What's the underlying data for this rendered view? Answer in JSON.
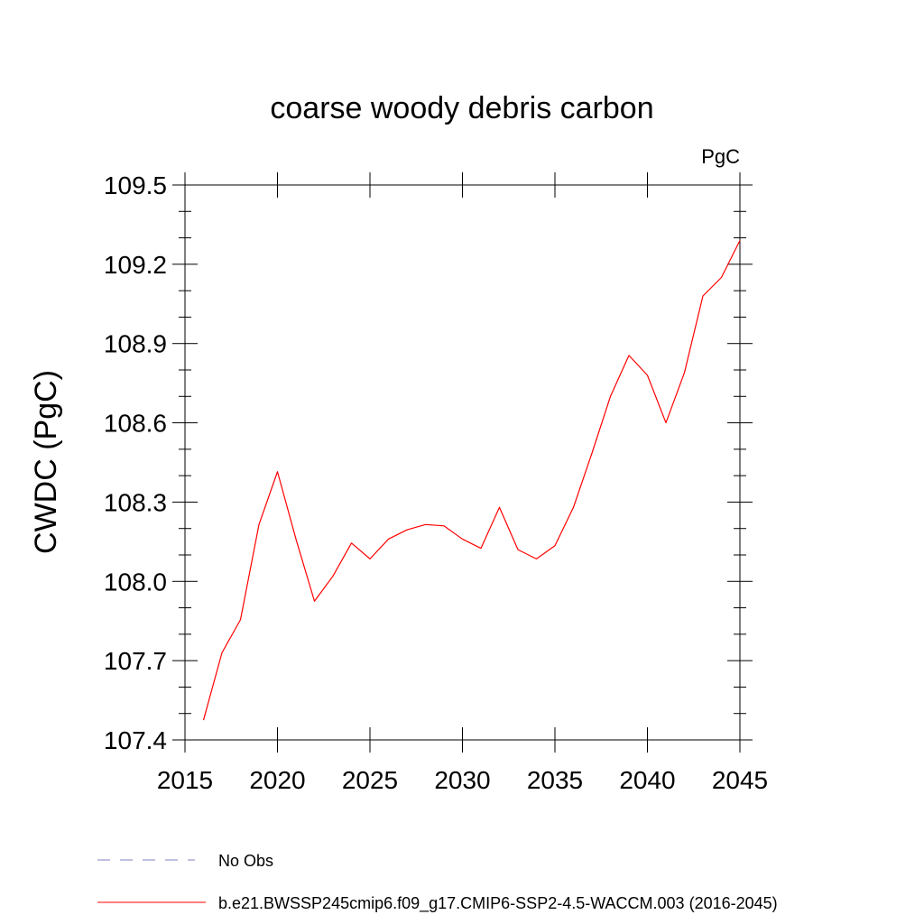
{
  "chart_data": {
    "type": "line",
    "title": "coarse woody debris carbon",
    "units": "PgC",
    "ylabel": "CWDC  (PgC)",
    "xlabel": "",
    "xlim": [
      2015,
      2045
    ],
    "ylim": [
      107.4,
      109.5
    ],
    "xticks": [
      2015,
      2020,
      2025,
      2030,
      2035,
      2040,
      2045
    ],
    "xtick_labels": [
      "2015",
      "2020",
      "2025",
      "2030",
      "2035",
      "2040",
      "2045"
    ],
    "yticks": [
      107.4,
      107.7,
      108.0,
      108.3,
      108.6,
      108.9,
      109.2,
      109.5
    ],
    "ytick_labels": [
      "107.4",
      "107.7",
      "108.0",
      "108.3",
      "108.6",
      "108.9",
      "109.2",
      "109.5"
    ],
    "grid": false,
    "legend_position": "bottom",
    "legend": [
      {
        "label": "No Obs",
        "color": "#8080c0",
        "style": "dashed"
      },
      {
        "label": "b.e21.BWSSP245cmip6.f09_g17.CMIP6-SSP2-4.5-WACCM.003 (2016-2045)",
        "color": "#ff0000",
        "style": "solid"
      }
    ],
    "series": [
      {
        "name": "b.e21.BWSSP245cmip6.f09_g17.CMIP6-SSP2-4.5-WACCM.003 (2016-2045)",
        "color": "#ff0000",
        "x": [
          2016,
          2017,
          2018,
          2019,
          2020,
          2021,
          2022,
          2023,
          2024,
          2025,
          2026,
          2027,
          2028,
          2029,
          2030,
          2031,
          2032,
          2033,
          2034,
          2035,
          2036,
          2037,
          2038,
          2039,
          2040,
          2041,
          2042,
          2043,
          2044,
          2045
        ],
        "y": [
          107.475,
          107.73,
          107.855,
          108.215,
          108.415,
          108.16,
          107.925,
          108.02,
          108.145,
          108.085,
          108.16,
          108.195,
          108.215,
          108.21,
          108.16,
          108.125,
          108.28,
          108.12,
          108.085,
          108.135,
          108.28,
          108.485,
          108.7,
          108.855,
          108.78,
          108.6,
          108.79,
          109.08,
          109.15,
          109.29
        ]
      }
    ]
  }
}
